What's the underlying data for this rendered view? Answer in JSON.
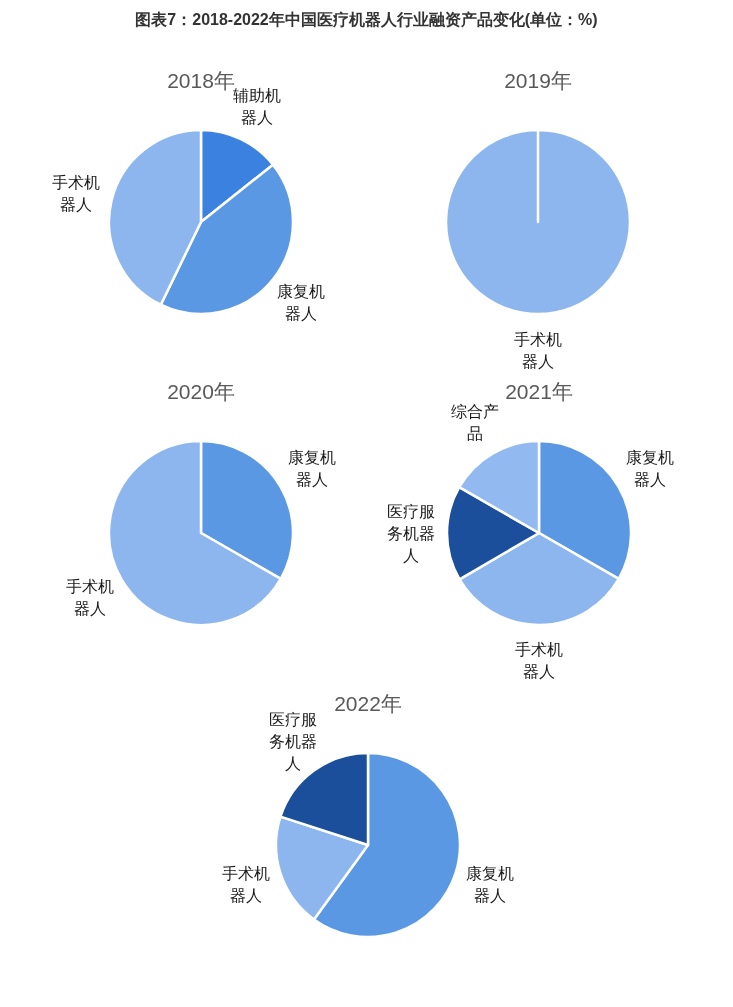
{
  "chart_data": [
    {
      "type": "pie",
      "title": "2018年",
      "annotations": [
        "图表7：2018-2022年中国医疗机器人行业融资产品变化(单位：%)"
      ],
      "categories": [
        "辅助机器人",
        "康复机器人",
        "手术机器人"
      ],
      "values": [
        14.3,
        42.9,
        42.8
      ],
      "colors": [
        "#3b82e0",
        "#5b98e3",
        "#8db6ef"
      ]
    },
    {
      "type": "pie",
      "title": "2019年",
      "categories": [
        "手术机器人"
      ],
      "values": [
        100
      ],
      "colors": [
        "#8db6ef"
      ]
    },
    {
      "type": "pie",
      "title": "2020年",
      "categories": [
        "康复机器人",
        "手术机器人"
      ],
      "values": [
        33.3,
        66.7
      ],
      "colors": [
        "#5b98e3",
        "#8db6ef"
      ]
    },
    {
      "type": "pie",
      "title": "2021年",
      "categories": [
        "康复机器人",
        "手术机器人",
        "医疗服务机器人",
        "综合产品"
      ],
      "values": [
        33.3,
        33.3,
        16.7,
        16.7
      ],
      "colors": [
        "#5b98e3",
        "#8db6ef",
        "#1b4f9c",
        "#92baf0"
      ]
    },
    {
      "type": "pie",
      "title": "2022年",
      "categories": [
        "康复机器人",
        "手术机器人",
        "医疗服务机器人"
      ],
      "values": [
        60,
        20,
        20
      ],
      "colors": [
        "#5b98e3",
        "#8db6ef",
        "#1b4f9c"
      ]
    }
  ]
}
